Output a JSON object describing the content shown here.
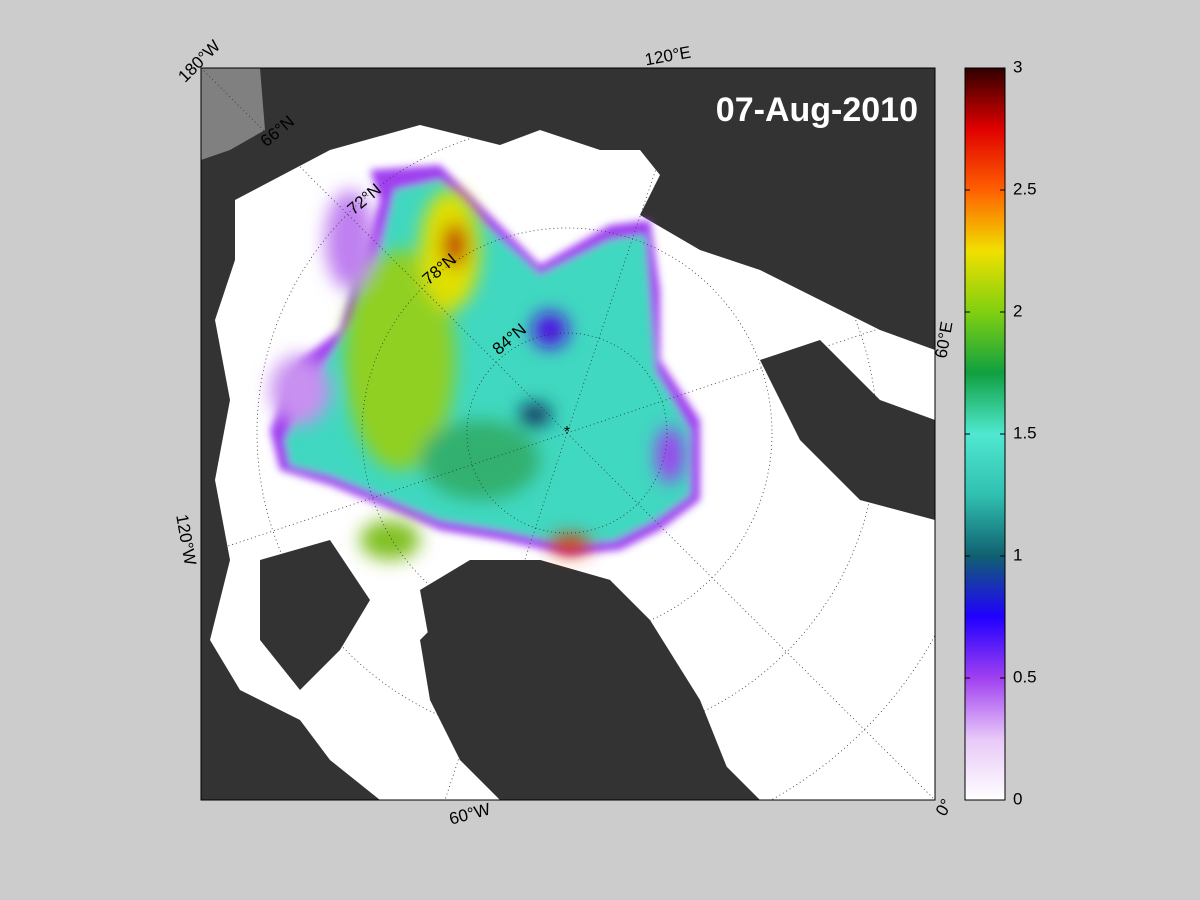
{
  "map": {
    "title": "07-Aug-2010",
    "lon_labels": [
      "180°W",
      "120°E",
      "60°E",
      "0°",
      "60°W",
      "120°W"
    ],
    "lat_labels": [
      "66°N",
      "72°N",
      "78°N",
      "84°N"
    ]
  },
  "colorbar": {
    "lim": [
      0,
      3
    ],
    "ticks": [
      0,
      0.5,
      1,
      1.5,
      2,
      2.5,
      3
    ],
    "colors": [
      "#ffffff",
      "#e8c8f8",
      "#a040f0",
      "#2000ff",
      "#106070",
      "#30c0b0",
      "#50e8d0",
      "#10a040",
      "#80d010",
      "#f0e000",
      "#ff6000",
      "#e00000",
      "#300000"
    ]
  }
}
